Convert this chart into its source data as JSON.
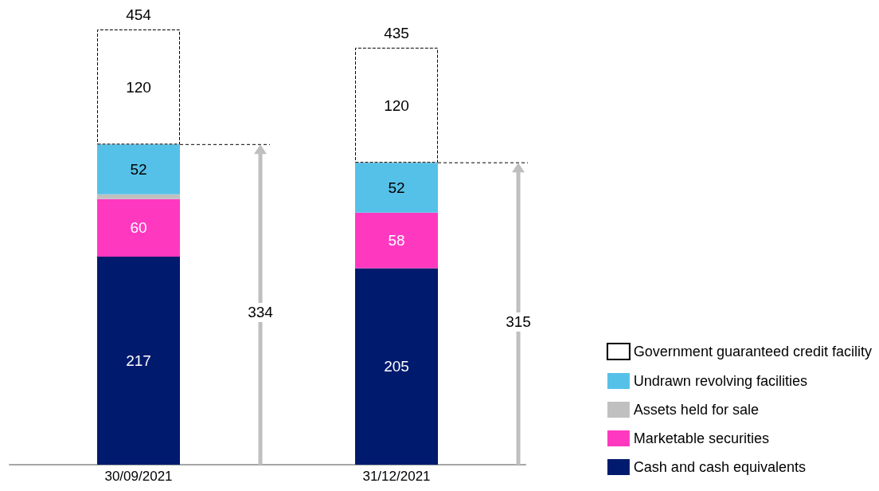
{
  "chart_data": {
    "type": "bar",
    "stacked": true,
    "categories": [
      "30/09/2021",
      "31/12/2021"
    ],
    "series": [
      {
        "name": "Cash and cash equivalents",
        "color": "#001a6e",
        "values": [
          217,
          205
        ],
        "value_labels": [
          "217",
          "205"
        ]
      },
      {
        "name": "Marketable securities",
        "color": "#ff38c0",
        "values": [
          60,
          58
        ],
        "value_labels": [
          "60",
          "58"
        ]
      },
      {
        "name": "Assets held for sale",
        "color": "#c0c0c0",
        "values": [
          5,
          null
        ],
        "value_labels": [
          null,
          null
        ]
      },
      {
        "name": "Undrawn revolving facilities",
        "color": "#56c1e8",
        "values": [
          52,
          52
        ],
        "value_labels": [
          "52",
          "52"
        ]
      },
      {
        "name": "Government guaranteed credit facility",
        "color": "#ffffff",
        "line_style": "dashed",
        "values": [
          120,
          120
        ],
        "value_labels": [
          "120",
          "120"
        ]
      }
    ],
    "totals": [
      "454",
      "435"
    ],
    "annotations": [
      "334",
      "315"
    ],
    "legend": "right"
  }
}
